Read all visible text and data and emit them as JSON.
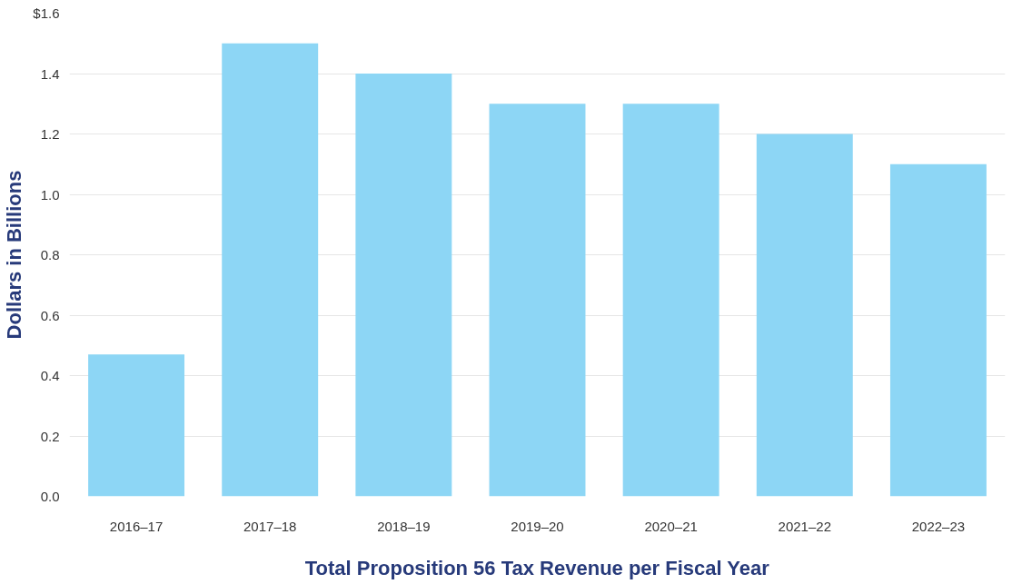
{
  "chart_data": {
    "type": "bar",
    "xlabel": "Total Proposition 56 Tax Revenue per Fiscal Year",
    "ylabel": "Dollars in Billions",
    "categories": [
      "2016–17",
      "2017–18",
      "2018–19",
      "2019–20",
      "2020–21",
      "2021–22",
      "2022–23"
    ],
    "values": [
      0.47,
      1.5,
      1.4,
      1.3,
      1.3,
      1.2,
      1.1
    ],
    "color": "#8dd6f5",
    "ylim": [
      0,
      1.6
    ],
    "yticks": [
      {
        "value": 0,
        "label": "0.0"
      },
      {
        "value": 0.2,
        "label": "0.2"
      },
      {
        "value": 0.4,
        "label": "0.4"
      },
      {
        "value": 0.6,
        "label": "0.6"
      },
      {
        "value": 0.8,
        "label": "0.8"
      },
      {
        "value": 1.0,
        "label": "1.0"
      },
      {
        "value": 1.2,
        "label": "1.2"
      },
      {
        "value": 1.4,
        "label": "1.4"
      },
      {
        "value": 1.6,
        "label": "$1.6"
      }
    ],
    "grid": "y"
  }
}
